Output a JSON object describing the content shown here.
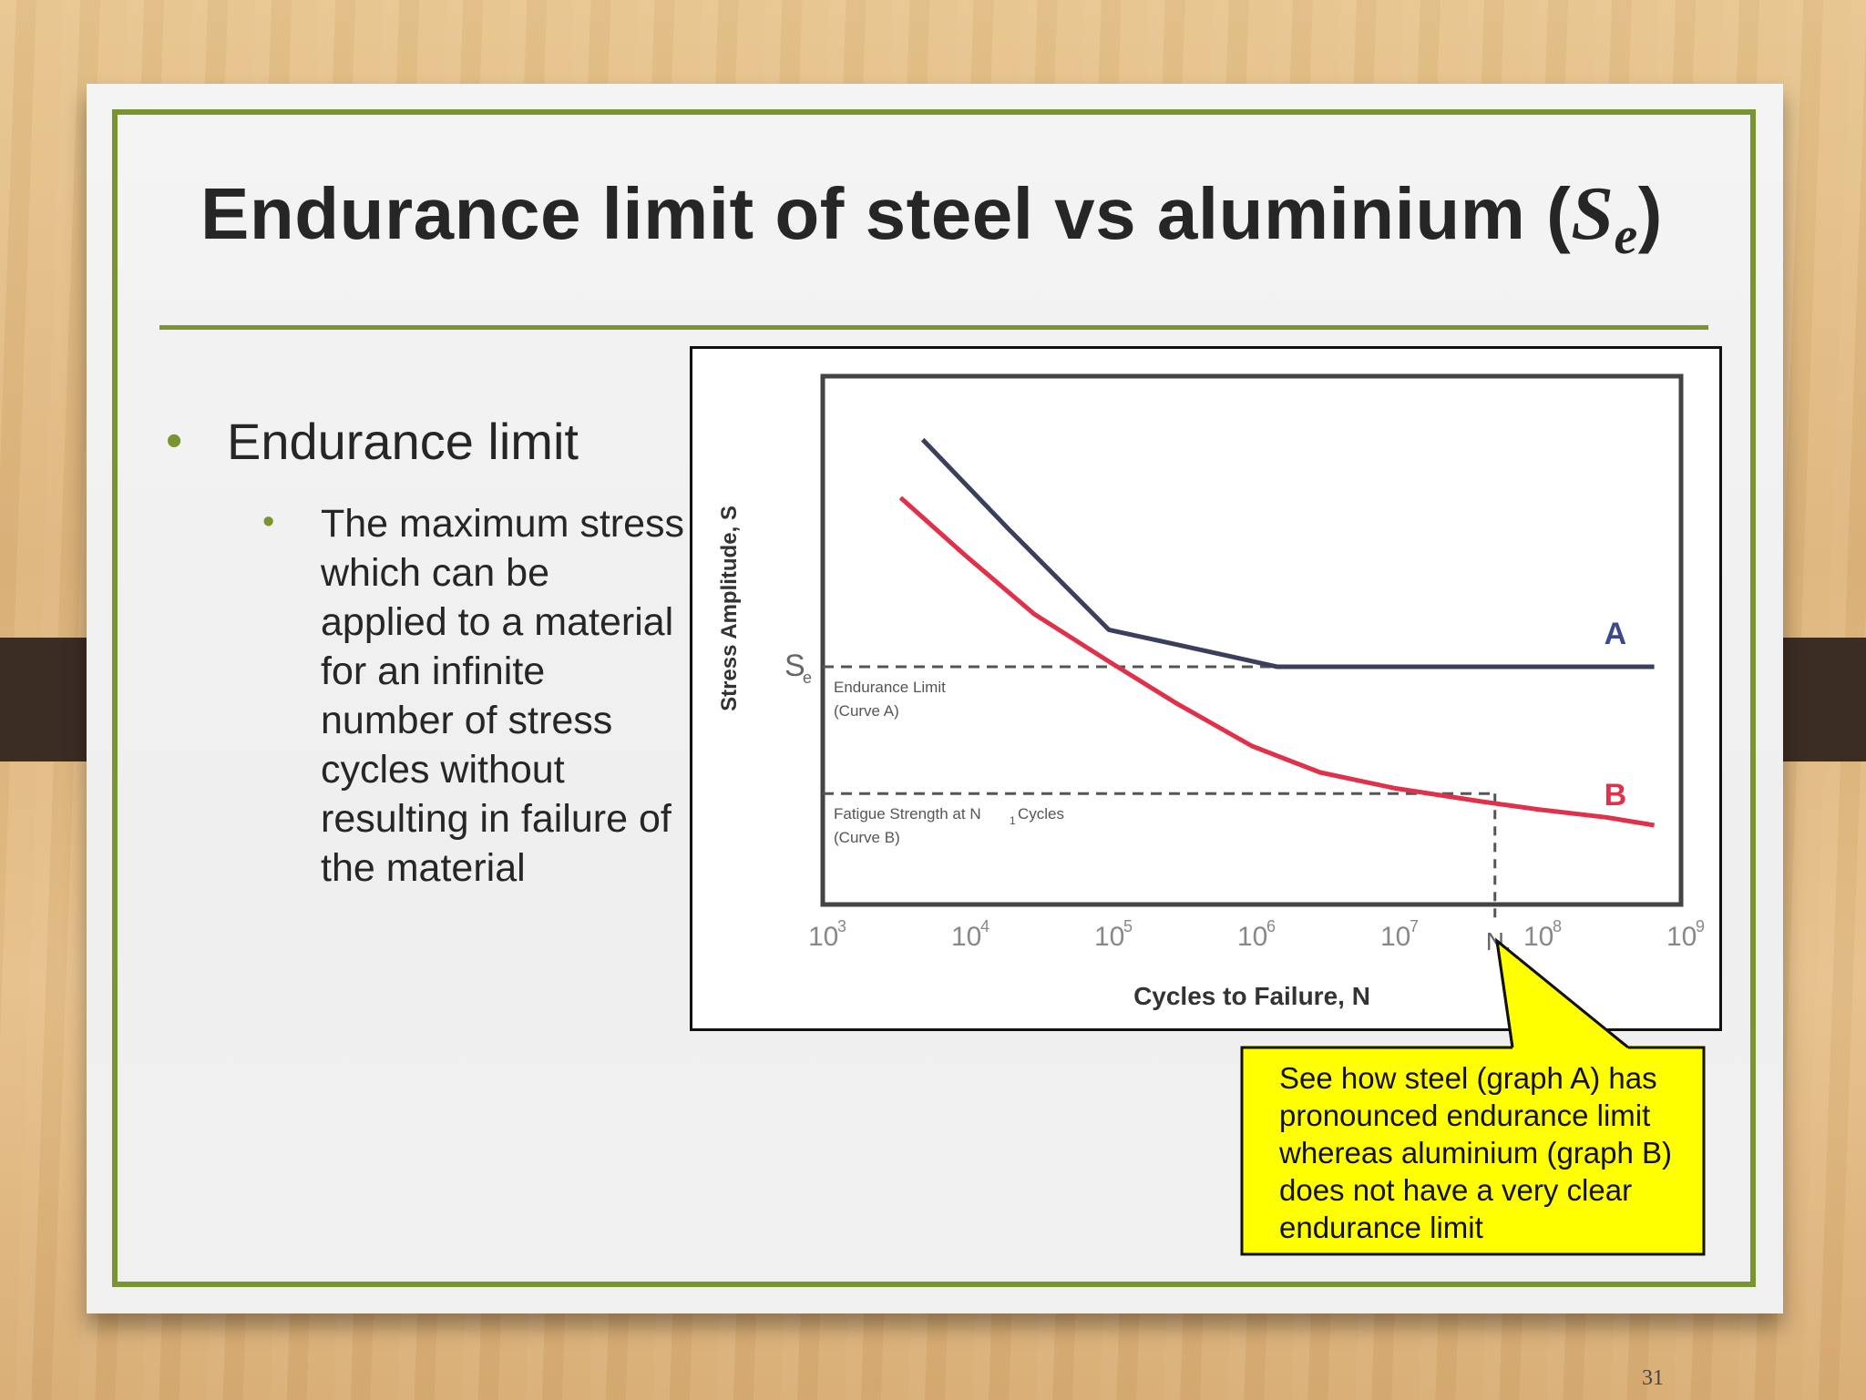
{
  "slide": {
    "title_main": "Endurance limit of steel vs aluminium (",
    "title_symbol": "S",
    "title_subscript": "e",
    "title_close": ")",
    "page_number": "31"
  },
  "bullets": {
    "level1": "Endurance limit",
    "level2": "The maximum stress which can be applied to a material for an infinite number of stress cycles without resulting in failure of the material"
  },
  "callout": {
    "text": "See how steel (graph A) has pronounced endurance limit whereas aluminium (graph B) does not have a very clear endurance limit",
    "fill": "#ffff00"
  },
  "chart_data": {
    "type": "line",
    "xlabel": "Cycles to Failure, N",
    "ylabel": "Stress Amplitude, S",
    "x_scale": "log",
    "xlim": [
      1000,
      1000000000
    ],
    "x_ticks": [
      {
        "value": 1000,
        "base": "10",
        "exp": "3"
      },
      {
        "value": 10000,
        "base": "10",
        "exp": "4"
      },
      {
        "value": 100000,
        "base": "10",
        "exp": "5"
      },
      {
        "value": 1000000,
        "base": "10",
        "exp": "6"
      },
      {
        "value": 10000000,
        "base": "10",
        "exp": "7"
      },
      {
        "value": 100000000,
        "base": "10",
        "exp": "8"
      },
      {
        "value": 1000000000,
        "base": "10",
        "exp": "9"
      }
    ],
    "ylim": [
      0,
      1
    ],
    "series": [
      {
        "name": "A",
        "color": "#3a3f5c",
        "points": [
          [
            5000,
            0.88
          ],
          [
            20000,
            0.71
          ],
          [
            100000,
            0.52
          ],
          [
            700000,
            0.47
          ],
          [
            1500000,
            0.45
          ],
          [
            3000000,
            0.45
          ],
          [
            100000000,
            0.45
          ],
          [
            650000000,
            0.45
          ]
        ]
      },
      {
        "name": "B",
        "color": "#e0304a",
        "points": [
          [
            3500,
            0.77
          ],
          [
            10000,
            0.66
          ],
          [
            30000,
            0.55
          ],
          [
            100000,
            0.46
          ],
          [
            300000,
            0.38
          ],
          [
            1000000,
            0.3
          ],
          [
            3000000,
            0.25
          ],
          [
            10000000,
            0.22
          ],
          [
            40000000,
            0.195
          ],
          [
            100000000,
            0.18
          ],
          [
            300000000,
            0.165
          ],
          [
            650000000,
            0.15
          ]
        ]
      }
    ],
    "annotations": {
      "se_label": "S",
      "se_sub": "e",
      "se_level": 0.45,
      "endurance_line1": "Endurance Limit",
      "endurance_line2": "(Curve A)",
      "fatigue_level": 0.21,
      "fatigue_line1": "Fatigue Strength at N",
      "fatigue_sub": "1",
      "fatigue_line1_end": " Cycles",
      "fatigue_line2": "(Curve B)",
      "n1_label": "N",
      "n1_sub": "1",
      "n1_value": 50000000
    }
  }
}
